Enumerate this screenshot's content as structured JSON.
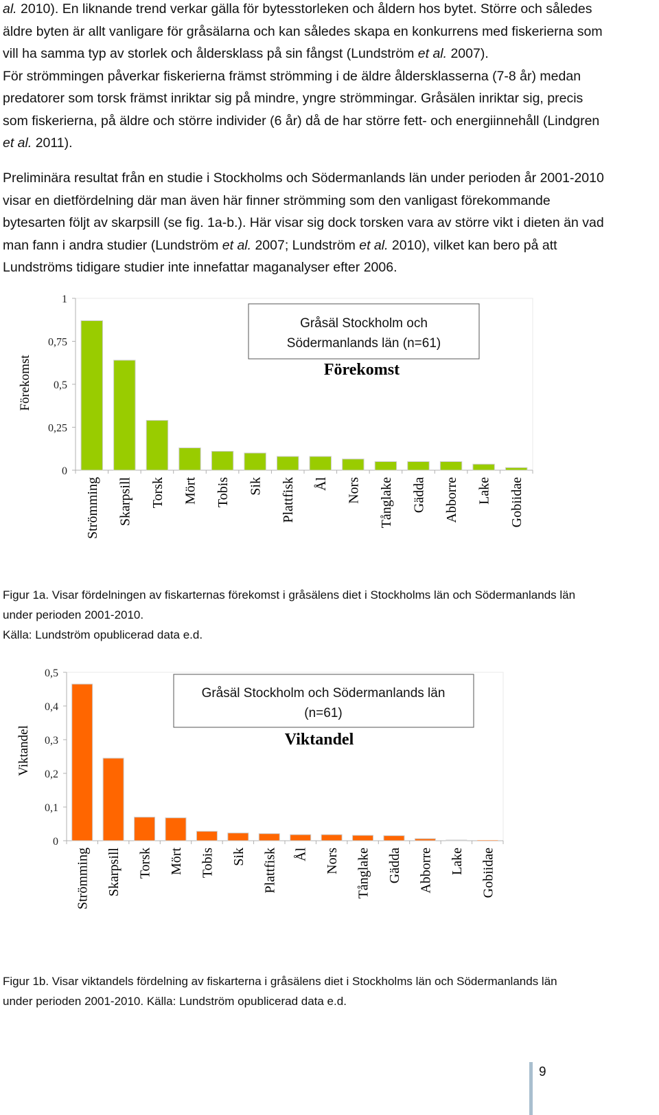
{
  "paragraphs": {
    "p1": {
      "lines": [
        [
          {
            "t": "al.",
            "i": true
          },
          {
            "t": " 2010). En liknande trend verkar gälla för bytesstorleken och åldern hos bytet. Större och således"
          }
        ],
        [
          {
            "t": "äldre byten är allt vanligare för gråsälarna och kan således skapa en konkurrens med fiskerierna som"
          }
        ],
        [
          {
            "t": "vill ha samma typ av storlek och åldersklass på sin fångst (Lundström "
          },
          {
            "t": "et al.",
            "i": true
          },
          {
            "t": " 2007)."
          }
        ],
        [
          {
            "t": "För strömmingen påverkar fiskerierna främst strömming i de äldre åldersklasserna (7-8 år) medan"
          }
        ],
        [
          {
            "t": "predatorer som torsk främst inriktar sig på mindre, yngre strömmingar. Gråsälen inriktar sig, precis"
          }
        ],
        [
          {
            "t": "som fiskerierna, på äldre och större individer (6 år) då de har större fett- och energiinnehåll (Lindgren"
          }
        ],
        [
          {
            "t": "et al.",
            "i": true
          },
          {
            "t": " 2011)."
          }
        ]
      ]
    },
    "p2": {
      "lines": [
        [
          {
            "t": "Preliminära resultat från en studie i Stockholms och Södermanlands län under perioden år 2001-2010"
          }
        ],
        [
          {
            "t": "visar en dietfördelning där man även här finner strömming som den vanligast förekommande"
          }
        ],
        [
          {
            "t": "bytesarten följt av skarpsill (se fig. 1a-b.). Här visar sig dock torsken vara av större vikt i dieten än vad"
          }
        ],
        [
          {
            "t": "man fann i andra studier (Lundström "
          },
          {
            "t": "et al.",
            "i": true
          },
          {
            "t": " 2007; Lundström "
          },
          {
            "t": "et al.",
            "i": true
          },
          {
            "t": " 2010), vilket kan bero på att"
          }
        ],
        [
          {
            "t": "Lundströms tidigare studier inte innefattar maganalyser efter 2006."
          }
        ]
      ]
    }
  },
  "chart_data": [
    {
      "type": "bar",
      "legend_box_lines": [
        "Gråsäl Stockholm och",
        "Södermanlands län (n=61)"
      ],
      "title": "Förekomst",
      "ylabel": "Förekomst",
      "xlabel": "",
      "yticks": [
        "0",
        "0,25",
        "0,5",
        "0,75",
        "1"
      ],
      "ylim": [
        0,
        1
      ],
      "color": "#99cc00",
      "categories": [
        "Strömming",
        "Skarpsill",
        "Torsk",
        "Mört",
        "Tobis",
        "Sik",
        "Plattfisk",
        "Ål",
        "Nors",
        "Tånglake",
        "Gädda",
        "Abborre",
        "Lake",
        "Gobiidae"
      ],
      "values": [
        0.87,
        0.64,
        0.29,
        0.13,
        0.11,
        0.1,
        0.08,
        0.08,
        0.065,
        0.05,
        0.05,
        0.05,
        0.035,
        0.015
      ]
    },
    {
      "type": "bar",
      "legend_box_lines": [
        "Gråsäl Stockholm och Södermanlands län",
        "(n=61)"
      ],
      "title": "Viktandel",
      "ylabel": "Viktandel",
      "xlabel": "",
      "yticks": [
        "0",
        "0,1",
        "0,2",
        "0,3",
        "0,4",
        "0,5"
      ],
      "ylim": [
        0,
        0.5
      ],
      "color": "#ff6600",
      "categories": [
        "Strömming",
        "Skarpsill",
        "Torsk",
        "Mört",
        "Tobis",
        "Sik",
        "Plattfisk",
        "Ål",
        "Nors",
        "Tånglake",
        "Gädda",
        "Abborre",
        "Lake",
        "Gobiidae"
      ],
      "values": [
        0.465,
        0.245,
        0.07,
        0.068,
        0.028,
        0.023,
        0.021,
        0.018,
        0.018,
        0.016,
        0.015,
        0.006,
        0.002,
        0.0
      ]
    }
  ],
  "captions": {
    "fig1a": {
      "lines": [
        "Figur 1a. Visar fördelningen av fiskarternas förekomst i gråsälens diet i Stockholms län och Södermanlands län",
        "under perioden 2001-2010.",
        "Källa: Lundström opublicerad data e.d."
      ]
    },
    "fig1b": {
      "lines": [
        "Figur 1b. Visar viktandels fördelning av fiskarterna i gråsälens diet i Stockholms län och Södermanlands län",
        "under perioden 2001-2010. Källa: Lundström opublicerad data e.d."
      ]
    }
  },
  "page_number": "9"
}
